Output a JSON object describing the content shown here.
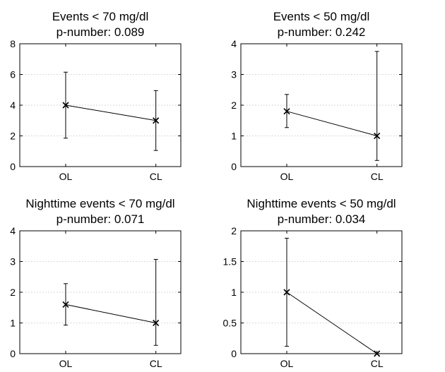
{
  "chart_data": [
    {
      "type": "line",
      "title": "Events < 70 mg/dl",
      "subtitle": "p-number: 0.089",
      "categories": [
        "OL",
        "CL"
      ],
      "values": [
        4,
        3
      ],
      "error_low": [
        1.85,
        1.05
      ],
      "error_high": [
        6.15,
        4.95
      ],
      "ylim": [
        0,
        8
      ],
      "yticks": [
        "0",
        "2",
        "4",
        "6",
        "8"
      ],
      "grid": "horizontal-dotted",
      "marker": "x"
    },
    {
      "type": "line",
      "title": "Events < 50 mg/dl",
      "subtitle": "p-number: 0.242",
      "categories": [
        "OL",
        "CL"
      ],
      "values": [
        1.8,
        1
      ],
      "error_low": [
        1.27,
        0.2
      ],
      "error_high": [
        2.35,
        3.75
      ],
      "ylim": [
        0,
        4
      ],
      "yticks": [
        "0",
        "1",
        "2",
        "3",
        "4"
      ],
      "grid": "horizontal-dotted",
      "marker": "x"
    },
    {
      "type": "line",
      "title": "Nighttime events < 70 mg/dl",
      "subtitle": "p-number: 0.071",
      "categories": [
        "OL",
        "CL"
      ],
      "values": [
        1.6,
        1
      ],
      "error_low": [
        0.93,
        0.27
      ],
      "error_high": [
        2.28,
        3.07
      ],
      "ylim": [
        0,
        4
      ],
      "yticks": [
        "0",
        "1",
        "2",
        "3",
        "4"
      ],
      "grid": "horizontal-dotted",
      "marker": "x"
    },
    {
      "type": "line",
      "title": "Nighttime events < 50 mg/dl",
      "subtitle": "p-number: 0.034",
      "categories": [
        "OL",
        "CL"
      ],
      "values": [
        1,
        0
      ],
      "error_low": [
        0.12,
        0
      ],
      "error_high": [
        1.88,
        0
      ],
      "ylim": [
        0,
        2
      ],
      "yticks": [
        "0",
        "0.5",
        "1",
        "1.5",
        "2"
      ],
      "grid": "horizontal-dotted",
      "marker": "x"
    }
  ]
}
